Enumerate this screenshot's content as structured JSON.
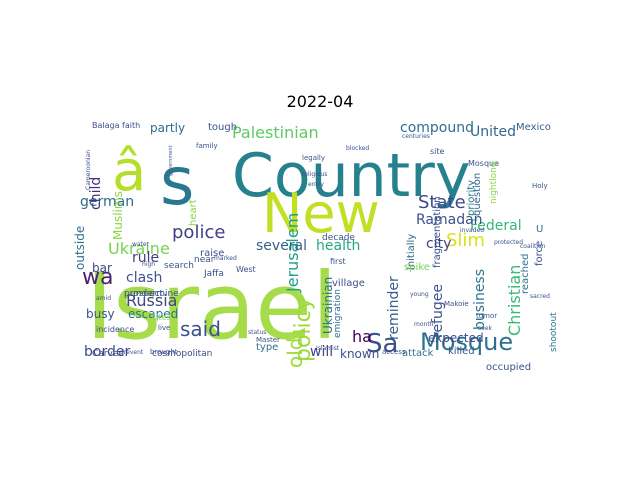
{
  "title": "2022-04",
  "colors": {
    "background": "#ffffff",
    "palette": [
      "#440154",
      "#482878",
      "#3e4989",
      "#31688e",
      "#26828e",
      "#1f9e89",
      "#35b779",
      "#6ece58",
      "#b5de2b",
      "#fde725"
    ]
  },
  "words": [
    {
      "text": "Israel",
      "color": "#a6db4a"
    },
    {
      "text": "Country",
      "color": "#26818e"
    },
    {
      "text": "New",
      "color": "#c2df23"
    },
    {
      "text": "â",
      "color": "#b5de2b"
    },
    {
      "text": "s",
      "color": "#2a788e"
    },
    {
      "text": "Mosque",
      "color": "#2c728e"
    },
    {
      "text": "Sa",
      "color": "#3b518b"
    },
    {
      "text": "Jerusalem",
      "color": "#1f9e89"
    },
    {
      "text": "police",
      "color": "#433e85"
    },
    {
      "text": "Palestinian",
      "color": "#5ec962"
    },
    {
      "text": "State",
      "color": "#3e4989"
    },
    {
      "text": "said",
      "color": "#3b528b"
    },
    {
      "text": "Russia",
      "color": "#404688"
    },
    {
      "text": "wa",
      "color": "#482475"
    },
    {
      "text": "United",
      "color": "#31688e"
    },
    {
      "text": "compound",
      "color": "#2d708e"
    },
    {
      "text": "Federal",
      "color": "#35b779"
    },
    {
      "text": "Ukraine",
      "color": "#7ad151"
    },
    {
      "text": "Ramadan",
      "color": "#3b528b"
    },
    {
      "text": "health",
      "color": "#22a884"
    },
    {
      "text": "policy",
      "color": "#9fda3a"
    },
    {
      "text": "old",
      "color": "#9fda3a"
    },
    {
      "text": "border",
      "color": "#3e4a89"
    },
    {
      "text": "clash",
      "color": "#3b528b"
    },
    {
      "text": "Slim",
      "color": "#d8e219"
    },
    {
      "text": "city",
      "color": "#433e85"
    },
    {
      "text": "refugee",
      "color": "#3a548c"
    },
    {
      "text": "business",
      "color": "#2c728e"
    },
    {
      "text": "Christian",
      "color": "#38b977"
    },
    {
      "text": "reminder",
      "color": "#355f8d"
    },
    {
      "text": "several",
      "color": "#355f8d"
    },
    {
      "text": "will",
      "color": "#404688"
    },
    {
      "text": "known",
      "color": "#3b528b"
    },
    {
      "text": "ha",
      "color": "#440154"
    },
    {
      "text": "german",
      "color": "#31688e"
    },
    {
      "text": "partly",
      "color": "#2f6c8e"
    },
    {
      "text": "rule",
      "color": "#443a83"
    },
    {
      "text": "child",
      "color": "#46327e"
    },
    {
      "text": "Muslims",
      "color": "#8bd646"
    },
    {
      "text": "Ukrainian",
      "color": "#2e6f8e"
    },
    {
      "text": "expected",
      "color": "#3e4a89"
    },
    {
      "text": "occupied",
      "color": "#3b528b"
    },
    {
      "text": "Mexico",
      "color": "#355f8d"
    },
    {
      "text": "question",
      "color": "#31688e"
    },
    {
      "text": "priority",
      "color": "#287d8e"
    },
    {
      "text": "initially",
      "color": "#31688e"
    },
    {
      "text": "fragmentation",
      "color": "#3b528b"
    },
    {
      "text": "emigration",
      "color": "#2e6e8e"
    },
    {
      "text": "bar",
      "color": "#3e4989"
    },
    {
      "text": "busy",
      "color": "#3b528b"
    },
    {
      "text": "escaped",
      "color": "#2c728e"
    },
    {
      "text": "outside",
      "color": "#2c728e"
    },
    {
      "text": "tough",
      "color": "#3b528b"
    },
    {
      "text": "raise",
      "color": "#3b528b"
    },
    {
      "text": "reached",
      "color": "#2c728e"
    },
    {
      "text": "force",
      "color": "#3b528b"
    },
    {
      "text": "shootout",
      "color": "#2a788e"
    },
    {
      "text": "attack",
      "color": "#2c728e"
    },
    {
      "text": "killed",
      "color": "#3b528b"
    },
    {
      "text": "village",
      "color": "#3b528b"
    },
    {
      "text": "spike",
      "color": "#7ad151"
    },
    {
      "text": "type",
      "color": "#2c728e"
    },
    {
      "text": "decade",
      "color": "#3b528b"
    },
    {
      "text": "Carved",
      "color": "#3e4989"
    },
    {
      "text": "cosmopolitan",
      "color": "#3e4989"
    },
    {
      "text": "incidence",
      "color": "#3e4989"
    },
    {
      "text": "undermine",
      "color": "#3b528b"
    },
    {
      "text": "prospect",
      "color": "#3b528b"
    },
    {
      "text": "near",
      "color": "#3b528b"
    },
    {
      "text": "Jaffa",
      "color": "#3b528b"
    },
    {
      "text": "search",
      "color": "#3b528b"
    },
    {
      "text": "West",
      "color": "#3b528b"
    },
    {
      "text": "Balaga",
      "color": "#3b528b"
    },
    {
      "text": "faith",
      "color": "#3b528b"
    },
    {
      "text": "family",
      "color": "#3b528b"
    },
    {
      "text": "site",
      "color": "#3b528b"
    },
    {
      "text": "sites",
      "color": "#8bd646"
    },
    {
      "text": "first",
      "color": "#3b528b"
    },
    {
      "text": "U",
      "color": "#2c728e"
    },
    {
      "text": "Mosque",
      "color": "#3b528b"
    },
    {
      "text": "Makoie",
      "color": "#3b528b"
    },
    {
      "text": "Master",
      "color": "#3b528b"
    },
    {
      "text": "brought",
      "color": "#3b528b"
    },
    {
      "text": "live",
      "color": "#3b528b"
    },
    {
      "text": "tumor",
      "color": "#3b528b"
    },
    {
      "text": "month",
      "color": "#3b528b"
    },
    {
      "text": "seek",
      "color": "#3b528b"
    },
    {
      "text": "young",
      "color": "#3b528b"
    },
    {
      "text": "protected",
      "color": "#3b528b"
    },
    {
      "text": "invaded",
      "color": "#3b528b"
    },
    {
      "text": "entry",
      "color": "#3b528b"
    },
    {
      "text": "status",
      "color": "#3b528b"
    },
    {
      "text": "prevent",
      "color": "#3b528b"
    },
    {
      "text": "Islamist",
      "color": "#3b528b"
    },
    {
      "text": "access",
      "color": "#3b528b"
    },
    {
      "text": "high",
      "color": "#3b528b"
    },
    {
      "text": "heart",
      "color": "#8bd646"
    },
    {
      "text": "marked",
      "color": "#3b528b"
    },
    {
      "text": "centuries",
      "color": "#3b528b"
    },
    {
      "text": "coalition",
      "color": "#3b528b"
    },
    {
      "text": "sacred",
      "color": "#3b528b"
    },
    {
      "text": "Holy",
      "color": "#3b528b"
    },
    {
      "text": "nightlong",
      "color": "#8bd646"
    },
    {
      "text": "amid",
      "color": "#3b528b"
    },
    {
      "text": "Cameroonian",
      "color": "#3b528b"
    },
    {
      "text": "legally",
      "color": "#3b528b"
    },
    {
      "text": "religious",
      "color": "#3b528b"
    },
    {
      "text": "blocked",
      "color": "#3b528b"
    },
    {
      "text": "government",
      "color": "#3b528b"
    },
    {
      "text": "water",
      "color": "#3b528b"
    }
  ]
}
